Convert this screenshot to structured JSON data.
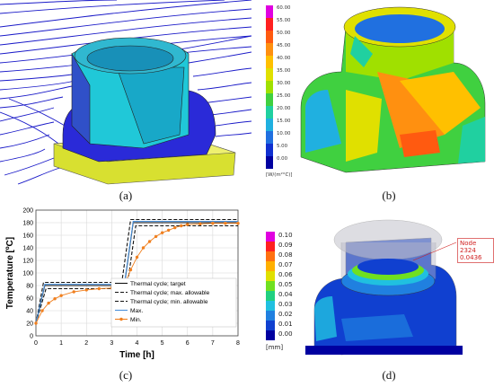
{
  "panels": {
    "a": {
      "caption": "(a)"
    },
    "b": {
      "caption": "(b)",
      "colorbar": {
        "labels": [
          "60.00",
          "55.00",
          "50.00",
          "45.00",
          "40.00",
          "35.00",
          "30.00",
          "25.00",
          "20.00",
          "15.00",
          "10.00",
          "5.00",
          "0.00"
        ],
        "colors": [
          "#e000e0",
          "#ff2020",
          "#ff5a10",
          "#ff9010",
          "#ffc000",
          "#e0e000",
          "#a0e000",
          "#40d040",
          "#20d0a0",
          "#20b0e0",
          "#2070e0",
          "#1030d0",
          "#0000a0"
        ],
        "unit": "[W/(m²°C)]"
      }
    },
    "c": {
      "caption": "(c)"
    },
    "d": {
      "caption": "(d)",
      "colorbar": {
        "labels": [
          "0.10",
          "0.09",
          "0.08",
          "0.07",
          "0.06",
          "0.05",
          "0.04",
          "0.03",
          "0.02",
          "0.01",
          "0.00"
        ],
        "colors": [
          "#e000e0",
          "#ff2020",
          "#ff7010",
          "#ffb000",
          "#e0e000",
          "#70e020",
          "#20d080",
          "#20c0e0",
          "#2080e0",
          "#1040d0",
          "#0000a0"
        ],
        "unit": "[mm]"
      },
      "node_label": {
        "line1": "Node 2324",
        "line2": "0.0436"
      }
    }
  },
  "chart_data": {
    "type": "line",
    "xlabel": "Time [h]",
    "ylabel": "Temperature [ºC]",
    "xlim": [
      0,
      8
    ],
    "ylim": [
      0,
      200
    ],
    "xticks": [
      0,
      1,
      2,
      3,
      4,
      5,
      6,
      7,
      8
    ],
    "yticks": [
      0,
      20,
      40,
      60,
      80,
      100,
      120,
      140,
      160,
      180,
      200
    ],
    "grid": true,
    "legend_position": "bottom-right",
    "series": [
      {
        "name": "Thermal cycle; target",
        "style": "solid",
        "color": "#111111",
        "x": [
          0,
          0.35,
          3.5,
          3.85,
          8
        ],
        "y": [
          20,
          80,
          80,
          180,
          180
        ]
      },
      {
        "name": "Thermal cycle; max. allowable",
        "style": "dashed",
        "color": "#111111",
        "x": [
          0,
          0.3,
          3.4,
          3.75,
          8
        ],
        "y": [
          20,
          85,
          85,
          185,
          185
        ]
      },
      {
        "name": "Thermal cycle; min. allowable",
        "style": "dashed",
        "color": "#111111",
        "x": [
          0,
          0.4,
          3.6,
          3.95,
          8
        ],
        "y": [
          20,
          75,
          75,
          175,
          175
        ]
      },
      {
        "name": "Max.",
        "style": "solid",
        "color": "#4a90d9",
        "x": [
          0,
          0.35,
          3.5,
          3.85,
          8
        ],
        "y": [
          20,
          82,
          82,
          182,
          182
        ]
      },
      {
        "name": "Min.",
        "style": "marker",
        "color": "#f08020",
        "x": [
          0,
          0.25,
          0.5,
          0.75,
          1.0,
          1.5,
          2.0,
          2.5,
          3.0,
          3.5,
          3.75,
          4.0,
          4.25,
          4.5,
          4.75,
          5.0,
          5.25,
          5.5,
          5.75,
          6.0,
          6.5,
          7.0,
          7.5,
          8.0
        ],
        "y": [
          20,
          40,
          52,
          59,
          64,
          70,
          73,
          75,
          76,
          80,
          105,
          125,
          140,
          150,
          158,
          164,
          168,
          172,
          175,
          177,
          178,
          179,
          179,
          179
        ]
      }
    ]
  }
}
